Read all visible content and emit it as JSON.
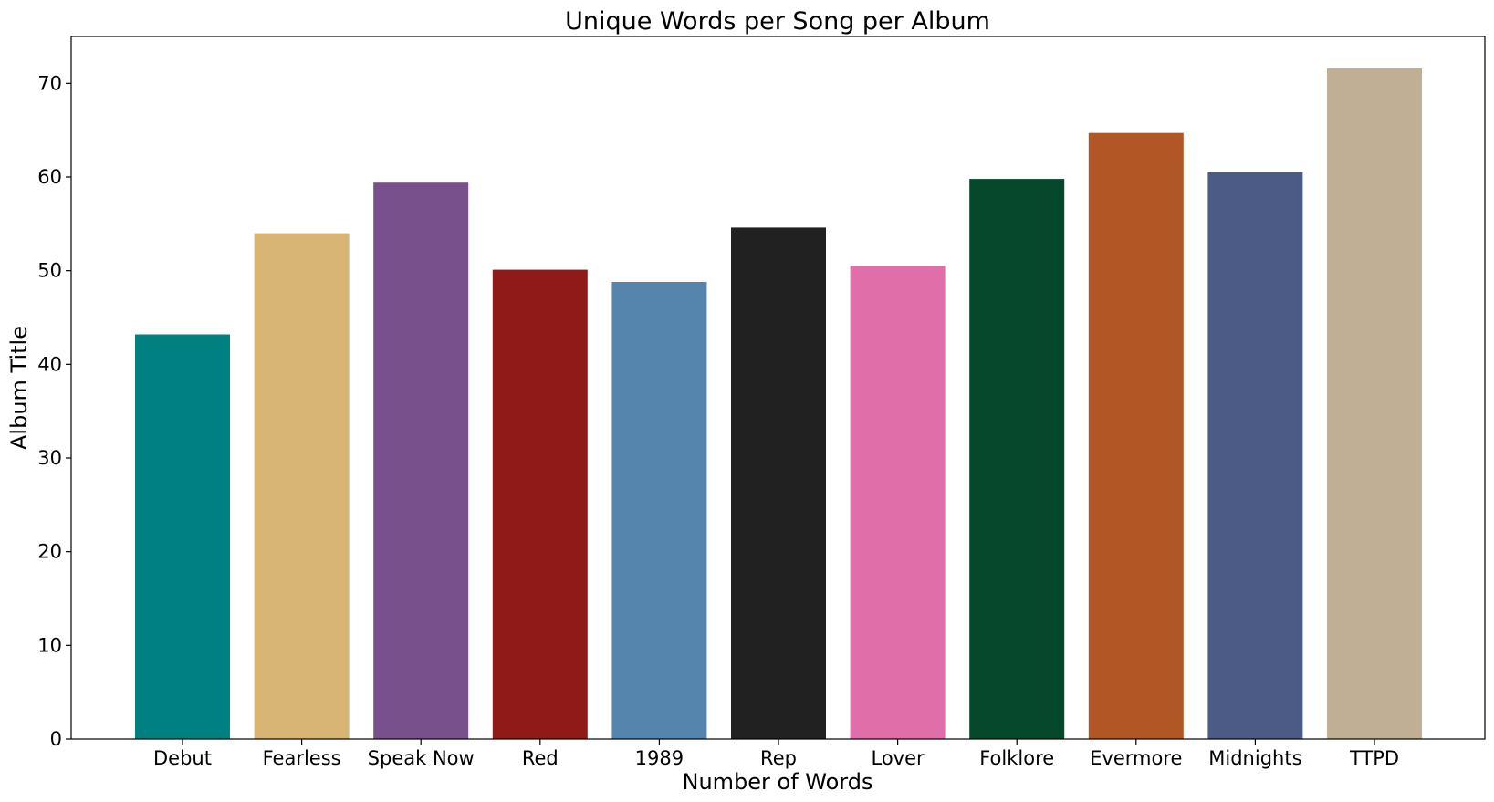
{
  "chart_data": {
    "type": "bar",
    "title": "Unique Words per Song per Album",
    "xlabel": "Number of Words",
    "ylabel": "Album Title",
    "categories": [
      "Debut",
      "Fearless",
      "Speak Now",
      "Red",
      "1989",
      "Rep",
      "Lover",
      "Folklore",
      "Evermore",
      "Midnights",
      "TTPD"
    ],
    "values": [
      43.2,
      54.0,
      59.4,
      50.1,
      48.8,
      54.6,
      50.5,
      59.8,
      64.7,
      60.5,
      71.6
    ],
    "colors": [
      "#008080",
      "#D8B574",
      "#77508C",
      "#8E1B18",
      "#5585AD",
      "#212121",
      "#E06FA9",
      "#05482B",
      "#B05725",
      "#4B5B86",
      "#C0AE95"
    ],
    "ylim": [
      0,
      75
    ],
    "yticks": [
      0,
      10,
      20,
      30,
      40,
      50,
      60,
      70
    ],
    "grid": false,
    "legend": false
  }
}
